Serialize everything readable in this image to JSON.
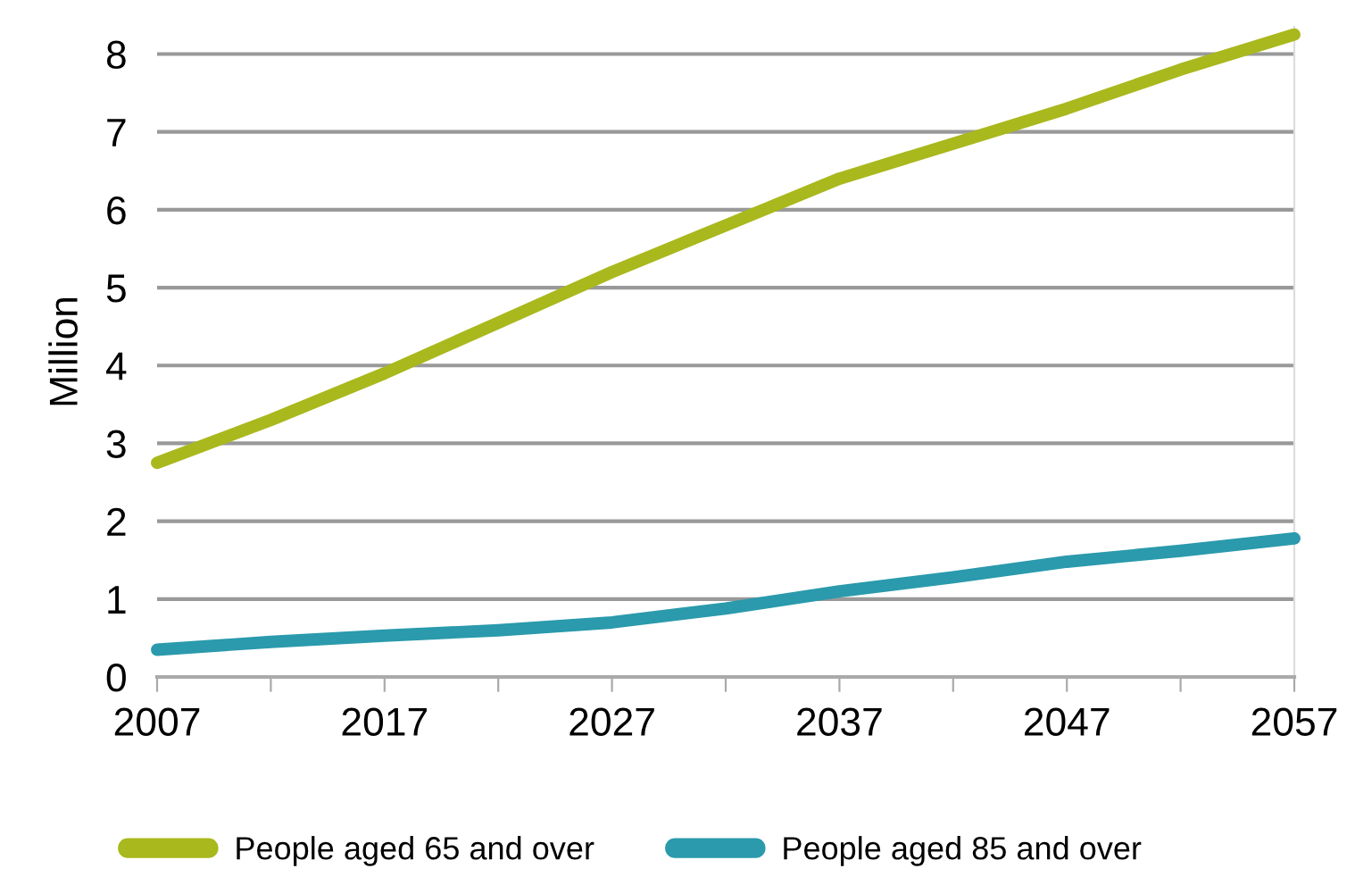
{
  "chart_data": {
    "type": "line",
    "ylabel": "Million",
    "x": [
      2007,
      2012,
      2017,
      2022,
      2027,
      2032,
      2037,
      2042,
      2047,
      2052,
      2057
    ],
    "series": [
      {
        "name": "People aged 65 and over",
        "color": "#a9b81c",
        "values": [
          2.75,
          3.3,
          3.9,
          4.55,
          5.2,
          5.8,
          6.4,
          6.85,
          7.3,
          7.8,
          8.25
        ]
      },
      {
        "name": "People aged 85 and over",
        "color": "#2a9aac",
        "values": [
          0.35,
          0.45,
          0.53,
          0.6,
          0.7,
          0.88,
          1.1,
          1.28,
          1.48,
          1.62,
          1.78
        ]
      }
    ],
    "xlim": [
      2007,
      2057
    ],
    "xticks": [
      2007,
      {
        "value": 2012,
        "label": null
      },
      2017,
      {
        "value": 2022,
        "label": null
      },
      2027,
      {
        "value": 2032,
        "label": null
      },
      2037,
      {
        "value": 2042,
        "label": null
      },
      2047,
      {
        "value": 2052,
        "label": null
      },
      2057
    ],
    "ylim": [
      0,
      8.35
    ],
    "yticks": [
      0,
      1,
      2,
      3,
      4,
      5,
      6,
      7,
      8
    ],
    "grid": "y",
    "legend": "bottom",
    "marker": "none",
    "line_style": "solid"
  }
}
